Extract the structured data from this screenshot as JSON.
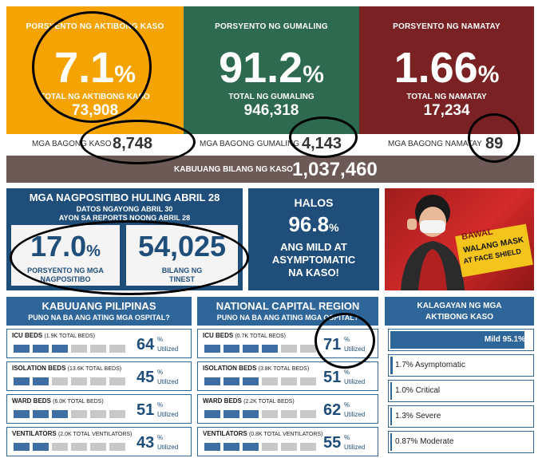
{
  "top": {
    "active": {
      "title": "PORSYENTO NG AKTIBONG KASO",
      "percent": "7.1",
      "pct_sign": "%",
      "total_label": "TOTAL NG AKTIBONG KASO",
      "total": "73,908",
      "new_label": "MGA BAGONG KASO",
      "new_value": "8,748",
      "color": "#f5a300"
    },
    "recovered": {
      "title": "PORSYENTO NG GUMALING",
      "percent": "91.2",
      "pct_sign": "%",
      "total_label": "TOTAL NG GUMALING",
      "total": "946,318",
      "new_label": "MGA BAGONG GUMALING",
      "new_value": "4,143",
      "color": "#2d6a4f"
    },
    "deaths": {
      "title": "PORSYENTO NG NAMATAY",
      "percent": "1.66",
      "pct_sign": "%",
      "total_label": "TOTAL NG NAMATAY",
      "total": "17,234",
      "new_label": "MGA BAGONG NAMATAY",
      "new_value": "89",
      "color": "#7a2123"
    }
  },
  "total_cases": {
    "label": "KABUUANG BILANG NG KASO",
    "value": "1,037,460"
  },
  "positivity": {
    "title": "MGA NAGPOSITIBO HULING ABRIL 28",
    "subtitle1": "DATOS NGAYONG ABRIL 30",
    "subtitle2": "AYON SA REPORTS NOONG ABRIL 28",
    "rate": "17.0",
    "rate_sign": "%",
    "rate_label": "PORSYENTO NG MGA NAGPOSITIBO",
    "tested": "54,025",
    "tested_label": "BILANG NG TINEST"
  },
  "mild": {
    "halos": "HALOS",
    "value": "96.8",
    "sign": "%",
    "line1": "ANG MILD AT",
    "line2": "ASYMPTOMATIC",
    "line3": "NA KASO!"
  },
  "poster": {
    "line1": "BAWAL",
    "line2": "WALANG MASK",
    "line3": "AT FACE SHIELD"
  },
  "ph": {
    "title": "KABUUANG PILIPINAS",
    "subtitle": "PUNO NA BA ANG ATING MGA OSPITAL?",
    "rows": [
      {
        "label": "ICU BEDS",
        "detail": "(1.9K TOTAL BEDS)",
        "value": "64",
        "filled": 3
      },
      {
        "label": "ISOLATION BEDS",
        "detail": "(13.6K TOTAL BEDS)",
        "value": "45",
        "filled": 2
      },
      {
        "label": "WARD BEDS",
        "detail": "(6.0K TOTAL BEDS)",
        "value": "51",
        "filled": 3
      },
      {
        "label": "VENTILATORS",
        "detail": "(2.0K TOTAL VENTILATORS)",
        "value": "43",
        "filled": 2
      }
    ]
  },
  "ncr": {
    "title": "NATIONAL CAPITAL REGION",
    "subtitle": "PUNO NA BA ANG ATING MGA OSPITAL?",
    "rows": [
      {
        "label": "ICU BEDS",
        "detail": "(0.7K TOTAL BEDS)",
        "value": "71",
        "filled": 4
      },
      {
        "label": "ISOLATION BEDS",
        "detail": "(3.8K TOTAL BEDS)",
        "value": "51",
        "filled": 3
      },
      {
        "label": "WARD BEDS",
        "detail": "(2.2K TOTAL BEDS)",
        "value": "62",
        "filled": 3
      },
      {
        "label": "VENTILATORS",
        "detail": "(0.8K TOTAL VENTILATORS)",
        "value": "55",
        "filled": 3
      }
    ]
  },
  "util_sign": "%",
  "util_word": "Utilized",
  "condition": {
    "title1": "KALAGAYAN NG MGA",
    "title2": "AKTIBONG KASO",
    "items": [
      {
        "label": "Mild 95.1%",
        "share": 0.951
      },
      {
        "label": "1.7% Asymptomatic",
        "share": 0.017
      },
      {
        "label": "1.0% Critical",
        "share": 0.01
      },
      {
        "label": "1.3% Severe",
        "share": 0.013
      },
      {
        "label": "0.87% Moderate",
        "share": 0.0087
      }
    ]
  }
}
